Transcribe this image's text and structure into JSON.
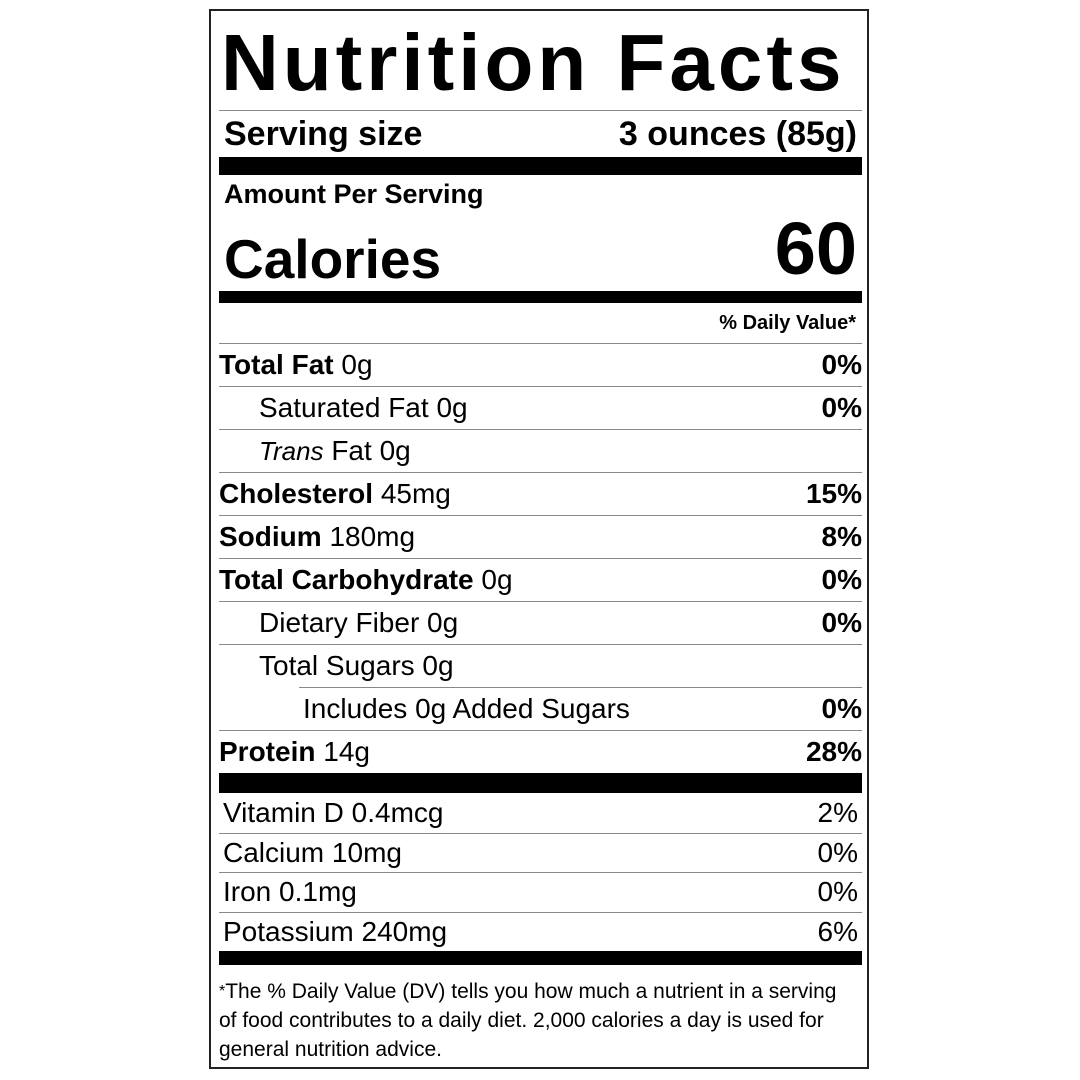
{
  "title": "Nutrition Facts",
  "serving": {
    "label": "Serving size",
    "value": "3 ounces (85g)"
  },
  "amount_per_serving": "Amount Per Serving",
  "calories": {
    "label": "Calories",
    "value": "60"
  },
  "daily_value_header": "% Daily Value*",
  "nutrients": [
    {
      "name": "Total Fat",
      "amount": "0g",
      "dv": "0%",
      "bold": true,
      "indent": 0
    },
    {
      "name": "Saturated Fat",
      "amount": "0g",
      "dv": "0%",
      "bold": false,
      "indent": 1
    },
    {
      "name": "Trans",
      "name_suffix": "Fat",
      "amount": "0g",
      "dv": "",
      "bold": false,
      "indent": 1,
      "italic": true
    },
    {
      "name": "Cholesterol",
      "amount": "45mg",
      "dv": "15%",
      "bold": true,
      "indent": 0
    },
    {
      "name": "Sodium",
      "amount": "180mg",
      "dv": "8%",
      "bold": true,
      "indent": 0
    },
    {
      "name": "Total Carbohydrate",
      "amount": "0g",
      "dv": "0%",
      "bold": true,
      "indent": 0
    },
    {
      "name": "Dietary Fiber",
      "amount": "0g",
      "dv": "0%",
      "bold": false,
      "indent": 1
    },
    {
      "name": "Total Sugars",
      "amount": "0g",
      "dv": "",
      "bold": false,
      "indent": 1
    },
    {
      "name": "Includes 0g Added Sugars",
      "amount": "",
      "dv": "0%",
      "bold": false,
      "indent": 2
    },
    {
      "name": "Protein",
      "amount": "14g",
      "dv": "28%",
      "bold": true,
      "indent": 0
    }
  ],
  "vitamins": [
    {
      "name": "Vitamin D",
      "amount": "0.4mcg",
      "dv": "2%"
    },
    {
      "name": "Calcium",
      "amount": "10mg",
      "dv": "0%"
    },
    {
      "name": "Iron",
      "amount": "0.1mg",
      "dv": "0%"
    },
    {
      "name": "Potassium",
      "amount": "240mg",
      "dv": "6%"
    }
  ],
  "footnote": {
    "star": "*",
    "text": "The % Daily Value (DV) tells you how much a nutrient in a serving of food contributes to a daily diet. 2,000 calories a day is used for general nutrition advice."
  }
}
